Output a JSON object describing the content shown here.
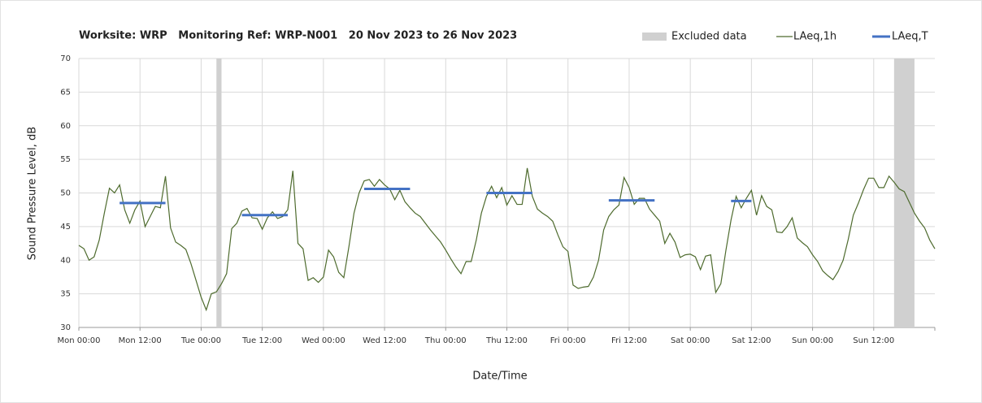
{
  "chart_data": {
    "type": "line",
    "title": "Worksite: WRP   Monitoring Ref: WRP-N001   20 Nov 2023 to 26 Nov 2023",
    "xlabel": "Date/Time",
    "ylabel": "Sound Pressure Level, dB",
    "xlim": [
      0,
      168
    ],
    "ylim": [
      30,
      70
    ],
    "yticks": [
      30,
      35,
      40,
      45,
      50,
      55,
      60,
      65,
      70
    ],
    "xticks": [
      {
        "value": 0,
        "label": "Mon 00:00"
      },
      {
        "value": 12,
        "label": "Mon 12:00"
      },
      {
        "value": 24,
        "label": "Tue 00:00"
      },
      {
        "value": 36,
        "label": "Tue 12:00"
      },
      {
        "value": 48,
        "label": "Wed 00:00"
      },
      {
        "value": 60,
        "label": "Wed 12:00"
      },
      {
        "value": 72,
        "label": "Thu 00:00"
      },
      {
        "value": 84,
        "label": "Thu 12:00"
      },
      {
        "value": 96,
        "label": "Fri 00:00"
      },
      {
        "value": 108,
        "label": "Fri 12:00"
      },
      {
        "value": 120,
        "label": "Sat 00:00"
      },
      {
        "value": 132,
        "label": "Sat 12:00"
      },
      {
        "value": 144,
        "label": "Sun 00:00"
      },
      {
        "value": 156,
        "label": "Sun 12:00"
      }
    ],
    "grid": true,
    "excluded": {
      "name": "Excluded data",
      "color": "#d0d0d0",
      "ranges": [
        [
          27,
          28
        ],
        [
          160,
          164
        ]
      ]
    },
    "series": [
      {
        "name": "LAeq,1h",
        "color": "#4e6b2e",
        "x": [
          0,
          1,
          2,
          3,
          4,
          5,
          6,
          7,
          8,
          9,
          10,
          11,
          12,
          13,
          14,
          15,
          16,
          17,
          18,
          19,
          20,
          21,
          22,
          23,
          24,
          25,
          26,
          27,
          28,
          29,
          30,
          31,
          32,
          33,
          34,
          35,
          36,
          37,
          38,
          39,
          40,
          41,
          42,
          43,
          44,
          45,
          46,
          47,
          48,
          49,
          50,
          51,
          52,
          53,
          54,
          55,
          56,
          57,
          58,
          59,
          60,
          61,
          62,
          63,
          64,
          65,
          66,
          67,
          68,
          69,
          70,
          71,
          72,
          73,
          74,
          75,
          76,
          77,
          78,
          79,
          80,
          81,
          82,
          83,
          84,
          85,
          86,
          87,
          88,
          89,
          90,
          91,
          92,
          93,
          94,
          95,
          96,
          97,
          98,
          99,
          100,
          101,
          102,
          103,
          104,
          105,
          106,
          107,
          108,
          109,
          110,
          111,
          112,
          113,
          114,
          115,
          116,
          117,
          118,
          119,
          120,
          121,
          122,
          123,
          124,
          125,
          126,
          127,
          128,
          129,
          130,
          131,
          132,
          133,
          134,
          135,
          136,
          137,
          138,
          139,
          140,
          141,
          142,
          143,
          144,
          145,
          146,
          147,
          148,
          149,
          150,
          151,
          152,
          153,
          154,
          155,
          156,
          157,
          158,
          159,
          160,
          161,
          162,
          163,
          164,
          165,
          166,
          167,
          168
        ],
        "values": [
          42.2,
          41.7,
          40,
          40.5,
          43,
          47,
          50.7,
          50,
          51.2,
          47.5,
          45.5,
          47.5,
          48.8,
          45,
          46.5,
          48,
          47.8,
          52.5,
          44.8,
          42.7,
          42.2,
          41.6,
          39.5,
          37,
          34.5,
          32.6,
          35,
          35.3,
          36.5,
          38,
          44.7,
          45.5,
          47.3,
          47.7,
          46.3,
          46.2,
          44.6,
          46.3,
          47.2,
          46.2,
          46.5,
          47.5,
          53.3,
          42.5,
          41.7,
          37,
          37.4,
          36.7,
          37.5,
          41.5,
          40.5,
          38.2,
          37.4,
          42,
          47,
          50,
          51.8,
          52,
          51,
          52,
          51.2,
          50.6,
          49,
          50.4,
          48.7,
          47.8,
          47,
          46.5,
          45.5,
          44.5,
          43.6,
          42.7,
          41.5,
          40.2,
          39,
          38,
          39.8,
          39.8,
          43,
          47,
          49.5,
          51,
          49.3,
          50.8,
          48.2,
          49.6,
          48.3,
          48.3,
          53.7,
          49.5,
          47.6,
          47,
          46.5,
          45.8,
          43.8,
          42,
          41.3,
          36.3,
          35.8,
          36,
          36.1,
          37.5,
          40,
          44.5,
          46.5,
          47.5,
          48.2,
          52.3,
          50.8,
          48.3,
          49.2,
          49.2,
          47.6,
          46.7,
          45.8,
          42.5,
          44,
          42.7,
          40.4,
          40.8,
          40.9,
          40.5,
          38.6,
          40.6,
          40.8,
          35.2,
          36.5,
          41.5,
          46,
          49.5,
          47.8,
          49.2,
          50.4,
          46.7,
          49.6,
          48,
          47.5,
          44.2,
          44.1,
          45,
          46.3,
          43.3,
          42.6,
          42,
          40.8,
          39.8,
          38.4,
          37.7,
          37.1,
          38.3,
          40,
          43.1,
          46.7,
          48.5,
          50.5,
          52.2,
          52.2,
          50.8,
          50.8,
          52.5,
          51.6,
          50.6,
          50.2,
          48.6,
          47,
          45.8,
          44.8,
          43,
          41.7
        ]
      }
    ],
    "periods": {
      "name": "LAeq,T",
      "color": "#4472c4",
      "segments": [
        {
          "x": [
            8,
            17
          ],
          "value": 48.5
        },
        {
          "x": [
            32,
            41
          ],
          "value": 46.7
        },
        {
          "x": [
            56,
            65
          ],
          "value": 50.6
        },
        {
          "x": [
            80,
            89
          ],
          "value": 50.0
        },
        {
          "x": [
            104,
            113
          ],
          "value": 48.9
        },
        {
          "x": [
            128,
            132
          ],
          "value": 48.8
        }
      ]
    }
  }
}
